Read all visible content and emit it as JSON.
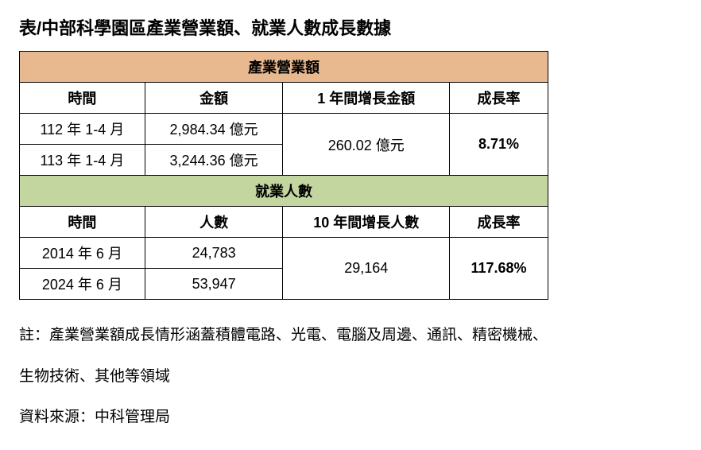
{
  "title": "表/中部科學園區產業營業額、就業人數成長數據",
  "table": {
    "section1": {
      "header": "產業營業額",
      "header_bg": "#e8b88f",
      "columns": {
        "c1": "時間",
        "c2": "金額",
        "c3": "1 年間增長金額",
        "c4": "成長率"
      },
      "rows": [
        {
          "time": "112 年 1-4 月",
          "value": "2,984.34 億元"
        },
        {
          "time": "113 年 1-4 月",
          "value": "3,244.36 億元"
        }
      ],
      "growth_amount": "260.02 億元",
      "growth_rate": "8.71%"
    },
    "section2": {
      "header": "就業人數",
      "header_bg": "#c4d6a0",
      "columns": {
        "c1": "時間",
        "c2": "人數",
        "c3": "10 年間增長人數",
        "c4": "成長率"
      },
      "rows": [
        {
          "time": "2014 年 6 月",
          "value": "24,783"
        },
        {
          "time": "2024 年 6 月",
          "value": "53,947"
        }
      ],
      "growth_amount": "29,164",
      "growth_rate": "117.68%"
    }
  },
  "notes": {
    "line1": "註：產業營業額成長情形涵蓋積體電路、光電、電腦及周邊、通訊、精密機械、",
    "line2": "生物技術、其他等領域",
    "line3": "資料來源：中科管理局"
  },
  "style": {
    "border_color": "#000000",
    "background_color": "#ffffff",
    "title_fontsize": 22,
    "cell_fontsize": 18,
    "note_fontsize": 19
  }
}
